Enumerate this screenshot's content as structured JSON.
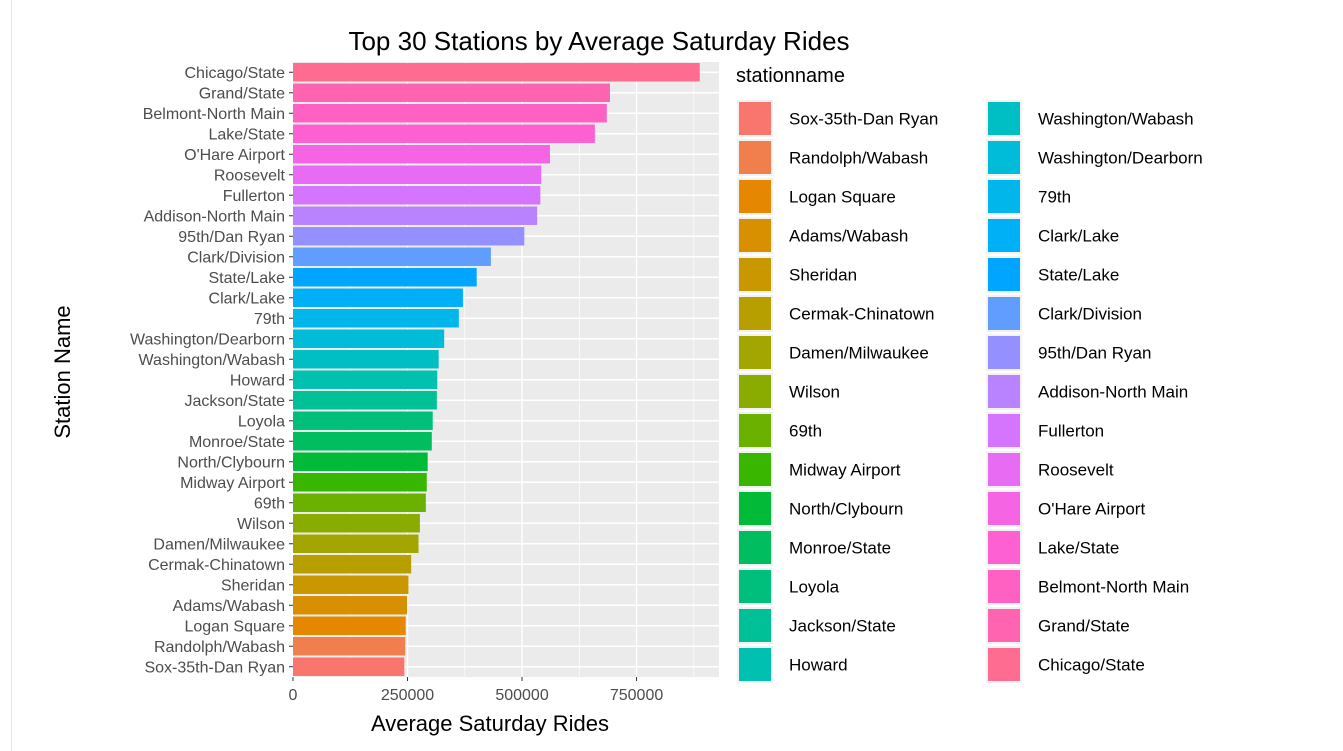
{
  "chart_data": {
    "type": "bar",
    "orientation": "horizontal",
    "title": "Top 30 Stations by Average Saturday Rides",
    "xlabel": "Average Saturday Rides",
    "ylabel": "Station Name",
    "xlim": [
      0,
      930000
    ],
    "xticks": [
      0,
      250000,
      500000,
      750000
    ],
    "xtick_labels": [
      "0",
      "250000",
      "500000",
      "750000"
    ],
    "grid": true,
    "legend_title": "stationname",
    "legend_position": "right",
    "categories": [
      "Sox-35th-Dan Ryan",
      "Randolph/Wabash",
      "Logan Square",
      "Adams/Wabash",
      "Sheridan",
      "Cermak-Chinatown",
      "Damen/Milwaukee",
      "Wilson",
      "69th",
      "Midway Airport",
      "North/Clybourn",
      "Monroe/State",
      "Loyola",
      "Jackson/State",
      "Howard",
      "Washington/Wabash",
      "Washington/Dearborn",
      "79th",
      "Clark/Lake",
      "State/Lake",
      "Clark/Division",
      "95th/Dan Ryan",
      "Addison-North Main",
      "Fullerton",
      "Roosevelt",
      "O'Hare Airport",
      "Lake/State",
      "Belmont-North Main",
      "Grand/State",
      "Chicago/State"
    ],
    "values": [
      243000,
      245000,
      246000,
      249000,
      252000,
      258000,
      274000,
      277000,
      290000,
      292000,
      294000,
      303000,
      305000,
      314000,
      315000,
      318000,
      330000,
      362000,
      371000,
      401000,
      432000,
      505000,
      533000,
      540000,
      542000,
      561000,
      659000,
      685000,
      692000,
      888000
    ],
    "colors": [
      "#F8766D",
      "#F07F4D",
      "#E58700",
      "#D89000",
      "#C99800",
      "#B79F00",
      "#A3A500",
      "#8AAB00",
      "#6BB100",
      "#39B600",
      "#00BA38",
      "#00BD5F",
      "#00BF7D",
      "#00C097",
      "#00C0AF",
      "#00BFC4",
      "#00BCD8",
      "#00B6EB",
      "#00B0F6",
      "#00A5FF",
      "#619CFF",
      "#9590FF",
      "#B983FF",
      "#D575FE",
      "#E76BF3",
      "#F564E3",
      "#FD61D1",
      "#FF61C3",
      "#FF64B0",
      "#FF6C91"
    ]
  }
}
